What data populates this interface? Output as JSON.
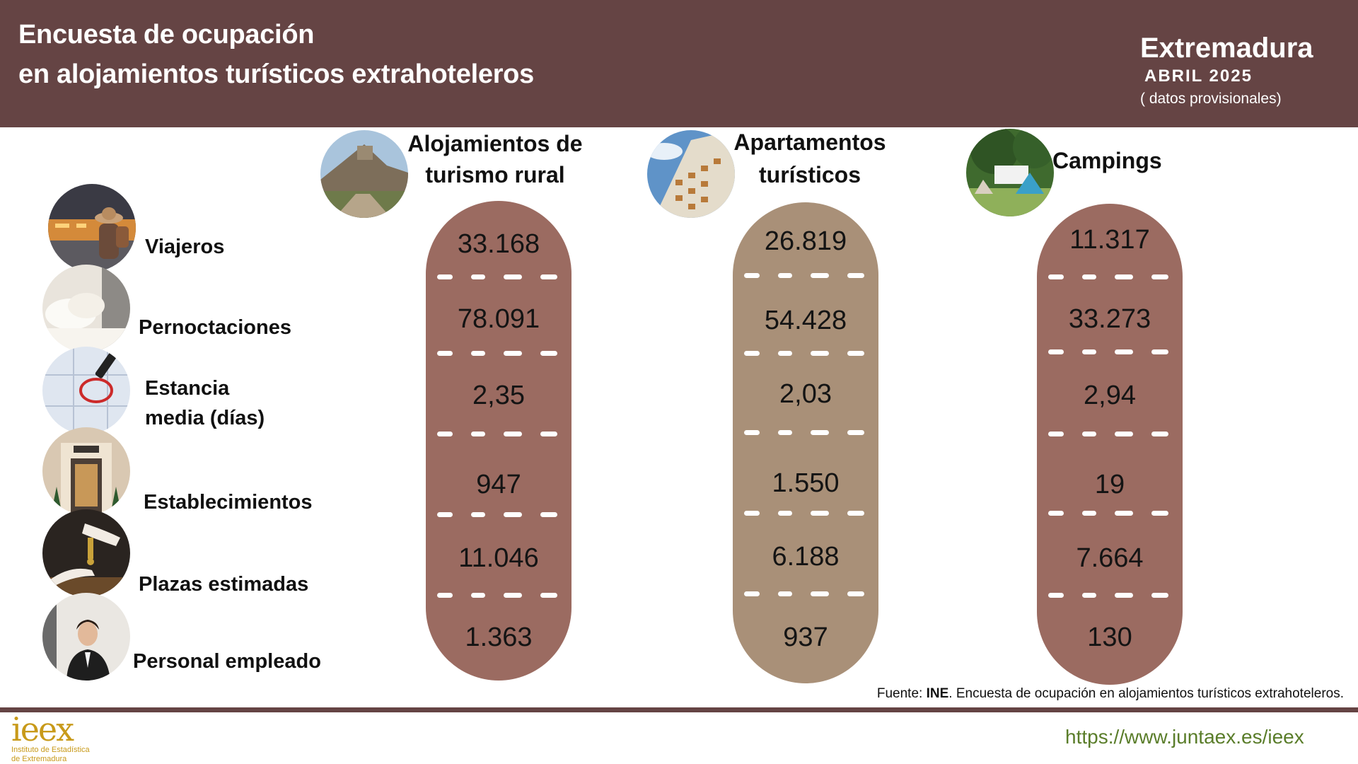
{
  "header": {
    "title_line1": "Encuesta de ocupación",
    "title_line2": "en alojamientos turísticos extrahoteleros",
    "region": "Extremadura",
    "period": "ABRIL 2025",
    "note": "( datos provisionales)"
  },
  "rows": [
    {
      "label": "Viajeros",
      "icon": "traveler-photo"
    },
    {
      "label": "Pernoctaciones",
      "icon": "bed-photo"
    },
    {
      "label_line1": "Estancia",
      "label_line2": "media (días)",
      "icon": "calendar-photo"
    },
    {
      "label": "Establecimientos",
      "icon": "hotel-photo"
    },
    {
      "label": "Plazas estimadas",
      "icon": "key-handover-photo"
    },
    {
      "label": "Personal empleado",
      "icon": "receptionist-photo"
    }
  ],
  "columns": [
    {
      "title_line1": "Alojamientos de",
      "title_line2": "turismo rural",
      "icon": "rural-village-photo",
      "color": "#9b6b61",
      "values": [
        "33.168",
        "78.091",
        "2,35",
        "947",
        "11.046",
        "1.363"
      ]
    },
    {
      "title_line1": "Apartamentos",
      "title_line2": "turísticos",
      "icon": "apartment-building-photo",
      "color": "#a99078",
      "values": [
        "26.819",
        "54.428",
        "2,03",
        "1.550",
        "6.188",
        "937"
      ]
    },
    {
      "title_line1": "Campings",
      "icon": "camping-tent-photo",
      "color": "#9b6b61",
      "values": [
        "11.317",
        "33.273",
        "2,94",
        "19",
        "7.664",
        "130"
      ]
    }
  ],
  "footer": {
    "source_prefix": "Fuente: ",
    "source_org": "INE",
    "source_text": ". Encuesta de ocupación en alojamientos turísticos extrahoteleros.",
    "url": "https://www.juntaex.es/ieex",
    "logo_mark": "ieex",
    "logo_line1": "Instituto de Estadística",
    "logo_line2": "de Extremadura"
  },
  "colors": {
    "header_bg": "#654444",
    "pill_rural": "#9b6b61",
    "pill_apartments": "#a99078",
    "pill_campings": "#9b6b61",
    "url_green": "#5a7d2a",
    "logo_gold": "#c89a1a"
  }
}
